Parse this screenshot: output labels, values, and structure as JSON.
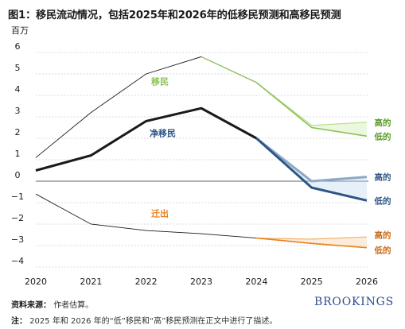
{
  "title": "图1：移民流动情况，包括2025年和2026年的低移民预测和高移民预测",
  "unit_label": "百万",
  "source_label": "资料来源：",
  "source_text": "作者估算。",
  "note_label": "注：",
  "note_text": "2025 年和 2026 年的“低”移民和“高”移民预测在正文中进行了描述。",
  "brand": "BROOKINGS",
  "colors": {
    "immigration": "#8cc152",
    "net": "#2e5586",
    "net_light": "#8aa8c8",
    "emigration": "#e8821e",
    "historical": "#1a1a1a",
    "grid": "#d0d0d0"
  },
  "chart_data": {
    "type": "line",
    "x": [
      2020,
      2021,
      2022,
      2023,
      2024,
      2025,
      2026
    ],
    "ylim": [
      -4,
      6
    ],
    "yticks": [
      "6",
      "5",
      "4",
      "3",
      "2",
      "1",
      "0",
      "−1",
      "−2",
      "−3",
      "−4"
    ],
    "ytick_values": [
      6,
      5,
      4,
      3,
      2,
      1,
      0,
      -1,
      -2,
      -3,
      -4
    ],
    "xticks": [
      "2020",
      "2021",
      "2022",
      "2023",
      "2024",
      "2025",
      "2026"
    ],
    "series": [
      {
        "name": "移民",
        "historical": [
          1.1,
          3.2,
          5.0,
          5.8,
          4.6
        ],
        "high": [
          2.6,
          2.75
        ],
        "low": [
          2.5,
          2.1
        ]
      },
      {
        "name": "净移民",
        "historical": [
          0.5,
          1.2,
          2.8,
          3.4,
          2.0
        ],
        "high": [
          0.0,
          0.2
        ],
        "low": [
          -0.3,
          -0.9
        ]
      },
      {
        "name": "迁出",
        "historical": [
          -0.6,
          -2.0,
          -2.3,
          -2.45,
          -2.65
        ],
        "high": [
          -2.7,
          -2.6
        ],
        "low": [
          -2.9,
          -3.1
        ]
      }
    ],
    "annotations": {
      "high": "高的",
      "low": "低的"
    }
  }
}
